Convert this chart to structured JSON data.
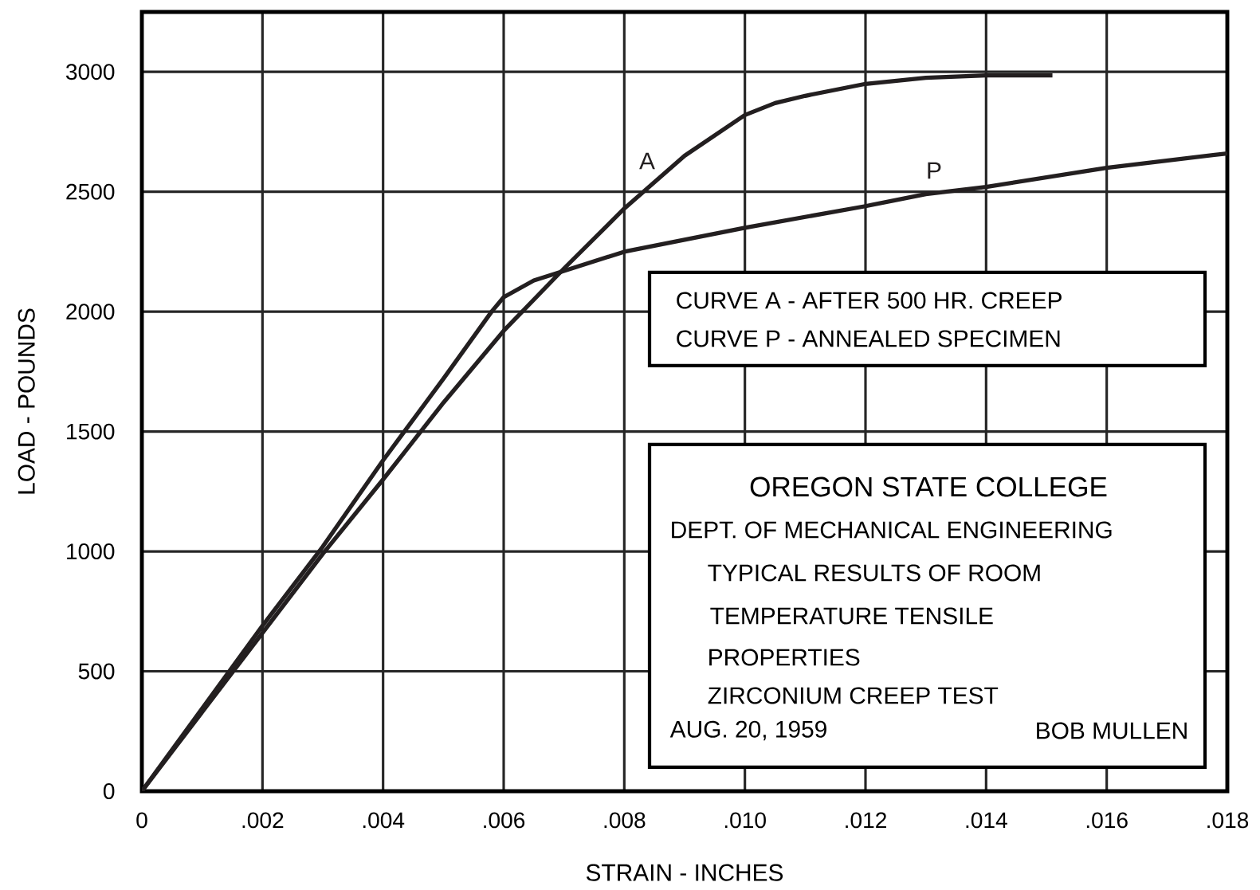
{
  "chart_data": {
    "type": "line",
    "xlabel": "STRAIN - INCHES",
    "ylabel": "LOAD - POUNDS",
    "xlim": [
      0,
      0.018
    ],
    "ylim": [
      0,
      3250
    ],
    "xticks": [
      0,
      {
        "value": 0.002,
        "label": ".002"
      },
      {
        "value": 0.004,
        "label": ".004"
      },
      {
        "value": 0.006,
        "label": ".006"
      },
      {
        "value": 0.008,
        "label": ".008"
      },
      {
        "value": 0.01,
        "label": ".010"
      },
      {
        "value": 0.012,
        "label": ".012"
      },
      {
        "value": 0.014,
        "label": ".014"
      },
      {
        "value": 0.016,
        "label": ".016"
      },
      {
        "value": 0.018,
        "label": ".018"
      }
    ],
    "yticks": [
      0,
      500,
      1000,
      1500,
      2000,
      2500,
      3000
    ],
    "grid": true,
    "series": [
      {
        "name": "A",
        "color": "#231f20",
        "x": [
          0,
          0.001,
          0.002,
          0.003,
          0.004,
          0.005,
          0.006,
          0.007,
          0.008,
          0.009,
          0.01,
          0.0105,
          0.011,
          0.012,
          0.013,
          0.014,
          0.0151
        ],
        "values": [
          0,
          330,
          660,
          990,
          1300,
          1620,
          1920,
          2180,
          2430,
          2650,
          2820,
          2870,
          2900,
          2950,
          2975,
          2985,
          2985
        ]
      },
      {
        "name": "P",
        "color": "#231f20",
        "x": [
          0,
          0.001,
          0.002,
          0.003,
          0.004,
          0.005,
          0.0058,
          0.006,
          0.0065,
          0.007,
          0.008,
          0.01,
          0.012,
          0.013,
          0.014,
          0.016,
          0.018
        ],
        "values": [
          0,
          345,
          690,
          1020,
          1380,
          1720,
          2000,
          2060,
          2130,
          2170,
          2250,
          2350,
          2440,
          2490,
          2520,
          2600,
          2660
        ]
      }
    ],
    "annotations": [
      "CURVE A - AFTER 500 HR. CREEP",
      "CURVE P - ANNEALED SPECIMEN",
      "OREGON STATE COLLEGE",
      "DEPT. OF MECHANICAL ENGINEERING",
      "TYPICAL RESULTS OF ROOM",
      "TEMPERATURE TENSILE",
      "PROPERTIES",
      "ZIRCONIUM CREEP TEST",
      "AUG. 20, 1959",
      "BOB MULLEN"
    ]
  }
}
